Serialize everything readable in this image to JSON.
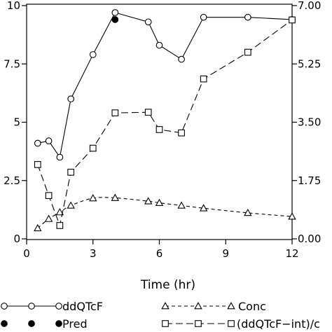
{
  "chart_data": {
    "type": "line",
    "xlabel": "Time (hr)",
    "xlim": [
      0,
      12
    ],
    "x_ticks": [
      "0",
      "3",
      "6",
      "9",
      "12"
    ],
    "y_left": {
      "lim": [
        0,
        10
      ],
      "ticks": [
        "0",
        "2.5",
        "5",
        "7.5",
        "10"
      ]
    },
    "y_right": {
      "lim": [
        0,
        7
      ],
      "ticks": [
        "0.00",
        "1.75",
        "3.50",
        "5.25",
        "7.00"
      ]
    },
    "legend_position": "bottom",
    "series": [
      {
        "name": "ddQTcF",
        "axis": "left",
        "marker": "circle",
        "line": "solid",
        "x": [
          0.5,
          1,
          1.5,
          2,
          3,
          4,
          5.5,
          6,
          7,
          8,
          10,
          12
        ],
        "y": [
          4.1,
          4.2,
          3.5,
          6.0,
          7.9,
          9.7,
          9.3,
          8.3,
          7.7,
          9.5,
          9.5,
          9.4
        ]
      },
      {
        "name": "Pred",
        "axis": "left",
        "marker": "filled-circle",
        "line": "none",
        "x": [
          4
        ],
        "y": [
          9.4
        ]
      },
      {
        "name": "Conc",
        "axis": "right",
        "marker": "triangle",
        "line": "dashed",
        "x": [
          0.5,
          1,
          1.5,
          2,
          3,
          4,
          5.5,
          6,
          7,
          8,
          10,
          12
        ],
        "y": [
          0.32,
          0.6,
          0.8,
          1.0,
          1.22,
          1.23,
          1.13,
          1.08,
          1.0,
          0.92,
          0.78,
          0.67
        ]
      },
      {
        "name": "(ddQTcF−int)/c",
        "axis": "right",
        "marker": "square",
        "line": "long-dash",
        "x": [
          0.5,
          1,
          1.5,
          2,
          3,
          4,
          5.5,
          6,
          7,
          8,
          10,
          12
        ],
        "y": [
          2.23,
          1.3,
          0.4,
          2.0,
          2.72,
          3.78,
          3.8,
          3.28,
          3.18,
          4.8,
          5.6,
          6.57
        ]
      }
    ]
  }
}
